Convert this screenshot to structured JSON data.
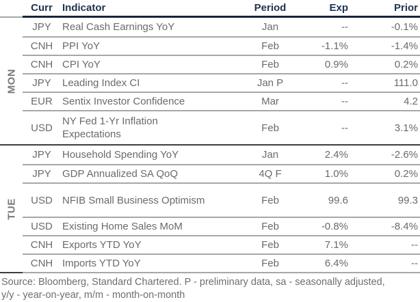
{
  "table": {
    "columns": {
      "curr": "Curr",
      "indicator": "Indicator",
      "period": "Period",
      "exp": "Exp",
      "prior": "Prior"
    },
    "groups": [
      {
        "day": "MON",
        "rows": [
          {
            "curr": "JPY",
            "indicator": "Real Cash Earnings YoY",
            "period": "Jan",
            "exp": "--",
            "prior": "-0.1%"
          },
          {
            "curr": "CNH",
            "indicator": "PPI YoY",
            "period": "Feb",
            "exp": "-1.1%",
            "prior": "-1.4%"
          },
          {
            "curr": "CNH",
            "indicator": "CPI YoY",
            "period": "Feb",
            "exp": "0.9%",
            "prior": "0.2%"
          },
          {
            "curr": "JPY",
            "indicator": "Leading Index CI",
            "period": "Jan P",
            "exp": "--",
            "prior": "111.0"
          },
          {
            "curr": "EUR",
            "indicator": "Sentix Investor Confidence",
            "period": "Mar",
            "exp": "--",
            "prior": "4.2"
          },
          {
            "curr": "USD",
            "indicator": "NY Fed 1-Yr Inflation\nExpectations",
            "period": "Feb",
            "exp": "--",
            "prior": "3.1%",
            "tall": true
          }
        ]
      },
      {
        "day": "TUE",
        "rows": [
          {
            "curr": "JPY",
            "indicator": "Household Spending YoY",
            "period": "Jan",
            "exp": "2.4%",
            "prior": "-2.6%"
          },
          {
            "curr": "JPY",
            "indicator": "GDP Annualized SA QoQ",
            "period": "4Q F",
            "exp": "1.0%",
            "prior": "0.2%"
          },
          {
            "curr": "USD",
            "indicator": "NFIB Small Business Optimism",
            "period": "Feb",
            "exp": "99.6",
            "prior": "99.3",
            "tall": true
          },
          {
            "curr": "USD",
            "indicator": "Existing Home Sales MoM",
            "period": "Feb",
            "exp": "-0.8%",
            "prior": "-8.4%"
          },
          {
            "curr": "CNH",
            "indicator": "Exports YTD YoY",
            "period": "Feb",
            "exp": "7.1%",
            "prior": "--"
          },
          {
            "curr": "CNH",
            "indicator": "Imports YTD YoY",
            "period": "Feb",
            "exp": "6.4%",
            "prior": "--"
          }
        ]
      }
    ]
  },
  "footer": {
    "line1": "Source: Bloomberg, Standard Chartered. P - preliminary data, sa - seasonally adjusted,",
    "line2": "y/y - year-on-year, m/m - month-on-month"
  },
  "colors": {
    "header_text": "#1e3350",
    "header_rule": "#17243a",
    "group_divider": "#3d3d3d",
    "row_separator": "#a5a7aa",
    "body_text": "#696a6d",
    "day_label": "#77787b"
  }
}
